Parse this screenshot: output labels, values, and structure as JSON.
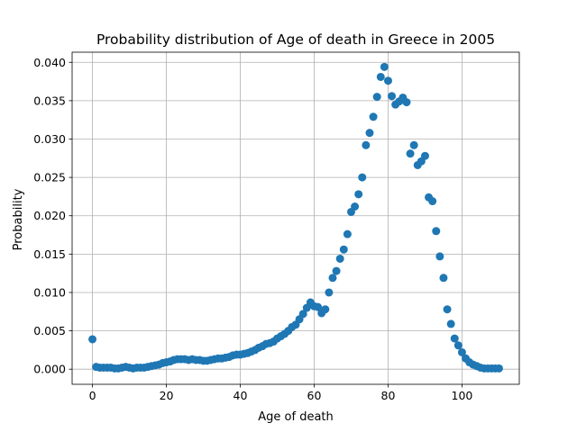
{
  "chart_data": {
    "type": "scatter",
    "title": "Probability distribution of Age of death in Greece in 2005",
    "xlabel": "Age of death",
    "ylabel": "Probability",
    "xlim": [
      -5.5,
      115.5
    ],
    "ylim": [
      -0.00197,
      0.04132
    ],
    "xticks": [
      0,
      20,
      40,
      60,
      80,
      100
    ],
    "xtick_labels": [
      "0",
      "20",
      "40",
      "60",
      "80",
      "100"
    ],
    "yticks": [
      0.0,
      0.005,
      0.01,
      0.015,
      0.02,
      0.025,
      0.03,
      0.035,
      0.04
    ],
    "ytick_labels": [
      "0.000",
      "0.005",
      "0.010",
      "0.015",
      "0.020",
      "0.025",
      "0.030",
      "0.035",
      "0.040"
    ],
    "grid": true,
    "marker_color": "#1f77b4",
    "series": [
      {
        "name": "Greece 2005",
        "x": [
          0,
          1,
          2,
          3,
          4,
          5,
          6,
          7,
          8,
          9,
          10,
          11,
          12,
          13,
          14,
          15,
          16,
          17,
          18,
          19,
          20,
          21,
          22,
          23,
          24,
          25,
          26,
          27,
          28,
          29,
          30,
          31,
          32,
          33,
          34,
          35,
          36,
          37,
          38,
          39,
          40,
          41,
          42,
          43,
          44,
          45,
          46,
          47,
          48,
          49,
          50,
          51,
          52,
          53,
          54,
          55,
          56,
          57,
          58,
          59,
          60,
          61,
          62,
          63,
          64,
          65,
          66,
          67,
          68,
          69,
          70,
          71,
          72,
          73,
          74,
          75,
          76,
          77,
          78,
          79,
          80,
          81,
          82,
          83,
          84,
          85,
          86,
          87,
          88,
          89,
          90,
          91,
          92,
          93,
          94,
          95,
          96,
          97,
          98,
          99,
          100,
          101,
          102,
          103,
          104,
          105,
          106,
          107,
          108,
          109,
          110
        ],
        "values": [
          0.0039,
          0.0003,
          0.0002,
          0.0002,
          0.0002,
          0.0002,
          0.0001,
          0.0001,
          0.0002,
          0.0003,
          0.0002,
          0.0001,
          0.0002,
          0.0002,
          0.0002,
          0.0003,
          0.0004,
          0.0005,
          0.0006,
          0.0008,
          0.0009,
          0.001,
          0.0012,
          0.0013,
          0.0013,
          0.0013,
          0.0012,
          0.0013,
          0.0012,
          0.0012,
          0.0011,
          0.0011,
          0.0012,
          0.0013,
          0.0014,
          0.0014,
          0.0015,
          0.0016,
          0.0018,
          0.0019,
          0.0019,
          0.002,
          0.0021,
          0.0023,
          0.0025,
          0.0028,
          0.003,
          0.0033,
          0.0034,
          0.0036,
          0.004,
          0.0043,
          0.0046,
          0.005,
          0.0055,
          0.0058,
          0.0065,
          0.0072,
          0.008,
          0.0087,
          0.0082,
          0.0081,
          0.0073,
          0.0078,
          0.01,
          0.0119,
          0.0128,
          0.0144,
          0.0156,
          0.0176,
          0.0205,
          0.0212,
          0.0228,
          0.025,
          0.0292,
          0.0308,
          0.0329,
          0.0355,
          0.0381,
          0.0394,
          0.0376,
          0.0356,
          0.0345,
          0.0349,
          0.0354,
          0.0348,
          0.0281,
          0.0292,
          0.0266,
          0.0271,
          0.0278,
          0.0224,
          0.0219,
          0.018,
          0.0147,
          0.0119,
          0.0078,
          0.0059,
          0.004,
          0.0031,
          0.0022,
          0.0014,
          0.0009,
          0.0006,
          0.0004,
          0.0002,
          0.0001,
          0.0001,
          0.0001,
          0.0001,
          0.0001
        ]
      }
    ]
  }
}
